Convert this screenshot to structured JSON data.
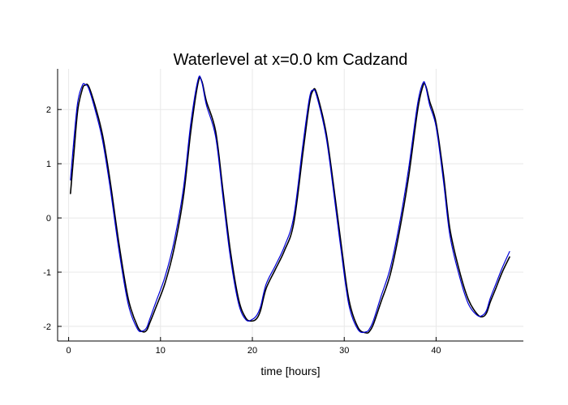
{
  "chart_data": {
    "type": "line",
    "title": "Waterlevel at x=0.0 km Cadzand",
    "xlabel": "time [hours]",
    "ylabel": "",
    "xlim": [
      -1.2,
      49.5
    ],
    "ylim": [
      -2.27,
      2.75
    ],
    "xticks": [
      0,
      10,
      20,
      30,
      40
    ],
    "yticks": [
      -2,
      -1,
      0,
      1,
      2
    ],
    "grid": true,
    "legend": "none",
    "series": [
      {
        "color": "#000000",
        "x": [
          0.2,
          0.6,
          1.0,
          1.5,
          1.8,
          2.2,
          3.0,
          3.7,
          4.5,
          5.5,
          6.5,
          7.5,
          8.1,
          8.5,
          8.8,
          9.5,
          10.5,
          11.5,
          12.5,
          13.3,
          14.1,
          14.5,
          15.0,
          16.0,
          16.8,
          17.6,
          18.5,
          19.3,
          20.0,
          20.5,
          20.9,
          21.5,
          22.5,
          23.5,
          24.5,
          25.5,
          26.2,
          26.6,
          27.0,
          28.0,
          28.8,
          29.6,
          30.5,
          31.5,
          32.4,
          32.8,
          33.2,
          34.0,
          35.0,
          36.0,
          37.0,
          38.0,
          38.6,
          38.9,
          39.3,
          40.0,
          40.8,
          41.5,
          42.5,
          43.5,
          44.5,
          45.1,
          45.5,
          45.9,
          46.5,
          47.2,
          48.0
        ],
        "y": [
          0.45,
          1.25,
          2.0,
          2.38,
          2.45,
          2.42,
          2.0,
          1.52,
          0.7,
          -0.5,
          -1.5,
          -2.0,
          -2.1,
          -2.07,
          -1.95,
          -1.65,
          -1.2,
          -0.55,
          0.4,
          1.6,
          2.5,
          2.52,
          2.15,
          1.6,
          0.5,
          -0.6,
          -1.5,
          -1.85,
          -1.9,
          -1.85,
          -1.7,
          -1.3,
          -0.95,
          -0.6,
          -0.1,
          1.2,
          2.1,
          2.35,
          2.3,
          1.6,
          0.65,
          -0.4,
          -1.5,
          -2.02,
          -2.12,
          -2.08,
          -1.95,
          -1.55,
          -1.05,
          -0.25,
          0.75,
          2.0,
          2.45,
          2.42,
          2.15,
          1.75,
          0.8,
          -0.2,
          -0.95,
          -1.5,
          -1.78,
          -1.82,
          -1.75,
          -1.55,
          -1.3,
          -1.0,
          -0.72
        ]
      },
      {
        "color": "#0000d9",
        "x": [
          0.2,
          0.6,
          1.0,
          1.5,
          1.8,
          2.2,
          3.0,
          3.7,
          4.5,
          5.5,
          6.5,
          7.5,
          8.1,
          8.5,
          8.8,
          9.5,
          10.5,
          11.5,
          12.5,
          13.3,
          14.1,
          14.5,
          15.0,
          16.0,
          16.8,
          17.6,
          18.5,
          19.3,
          20.0,
          20.5,
          20.9,
          21.5,
          22.5,
          23.5,
          24.5,
          25.5,
          26.2,
          26.6,
          27.0,
          28.0,
          28.8,
          29.6,
          30.5,
          31.5,
          32.4,
          32.8,
          33.2,
          34.0,
          35.0,
          36.0,
          37.0,
          38.0,
          38.6,
          38.9,
          39.3,
          40.0,
          40.8,
          41.5,
          42.5,
          43.5,
          44.5,
          45.1,
          45.5,
          45.9,
          46.5,
          47.2,
          48.0
        ],
        "y": [
          0.7,
          1.5,
          2.15,
          2.45,
          2.46,
          2.38,
          1.92,
          1.42,
          0.58,
          -0.62,
          -1.6,
          -2.05,
          -2.08,
          -2.02,
          -1.88,
          -1.55,
          -1.08,
          -0.42,
          0.55,
          1.75,
          2.56,
          2.5,
          2.08,
          1.5,
          0.38,
          -0.72,
          -1.58,
          -1.88,
          -1.87,
          -1.79,
          -1.63,
          -1.22,
          -0.88,
          -0.52,
          0.02,
          1.35,
          2.2,
          2.36,
          2.25,
          1.52,
          0.54,
          -0.52,
          -1.6,
          -2.06,
          -2.1,
          -2.03,
          -1.88,
          -1.45,
          -0.93,
          -0.12,
          0.9,
          2.12,
          2.5,
          2.4,
          2.08,
          1.68,
          0.68,
          -0.32,
          -1.05,
          -1.58,
          -1.8,
          -1.79,
          -1.7,
          -1.48,
          -1.22,
          -0.92,
          -0.62
        ]
      }
    ]
  }
}
